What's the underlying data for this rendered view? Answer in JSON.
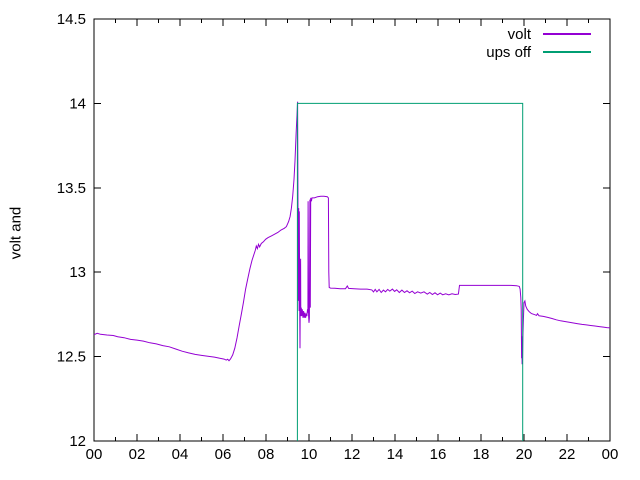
{
  "chart_data": {
    "type": "line",
    "title": "",
    "xlabel": "",
    "ylabel": "volt and",
    "grid": false,
    "x_axis": {
      "range": [
        0,
        24
      ],
      "major_tick_step": 2,
      "minor_tick_step": 1,
      "tick_labels": [
        "00",
        "02",
        "04",
        "06",
        "08",
        "10",
        "12",
        "14",
        "16",
        "18",
        "20",
        "22",
        "00"
      ]
    },
    "y_axis": {
      "range": [
        12,
        14.5
      ],
      "ticks": [
        12,
        12.5,
        13,
        13.5,
        14,
        14.5
      ],
      "tick_labels": [
        "12",
        "12.5",
        "13",
        "13.5",
        "14",
        "14.5"
      ]
    },
    "legend": {
      "position": "top-right-inside",
      "entries": [
        {
          "label": "volt",
          "color": "#9400d3"
        },
        {
          "label": "ups off",
          "color": "#009e73"
        }
      ]
    },
    "series": [
      {
        "name": "volt",
        "color": "#9400d3",
        "points": [
          [
            0,
            12.63
          ],
          [
            0.15,
            12.638
          ],
          [
            0.3,
            12.632
          ],
          [
            0.6,
            12.628
          ],
          [
            0.9,
            12.625
          ],
          [
            1.1,
            12.618
          ],
          [
            1.4,
            12.612
          ],
          [
            1.7,
            12.602
          ],
          [
            2,
            12.598
          ],
          [
            2.3,
            12.592
          ],
          [
            2.6,
            12.582
          ],
          [
            2.9,
            12.575
          ],
          [
            3.2,
            12.565
          ],
          [
            3.5,
            12.558
          ],
          [
            3.8,
            12.545
          ],
          [
            4.1,
            12.532
          ],
          [
            4.4,
            12.522
          ],
          [
            4.7,
            12.513
          ],
          [
            5,
            12.507
          ],
          [
            5.3,
            12.502
          ],
          [
            5.6,
            12.497
          ],
          [
            5.85,
            12.49
          ],
          [
            6.05,
            12.485
          ],
          [
            6.15,
            12.479
          ],
          [
            6.22,
            12.484
          ],
          [
            6.28,
            12.476
          ],
          [
            6.35,
            12.486
          ],
          [
            6.45,
            12.51
          ],
          [
            6.55,
            12.55
          ],
          [
            6.65,
            12.61
          ],
          [
            6.75,
            12.68
          ],
          [
            6.85,
            12.75
          ],
          [
            6.95,
            12.82
          ],
          [
            7.05,
            12.9
          ],
          [
            7.15,
            12.96
          ],
          [
            7.25,
            13.02
          ],
          [
            7.35,
            13.07
          ],
          [
            7.45,
            13.11
          ],
          [
            7.5,
            13.13
          ],
          [
            7.55,
            13.155
          ],
          [
            7.6,
            13.14
          ],
          [
            7.65,
            13.165
          ],
          [
            7.7,
            13.15
          ],
          [
            7.78,
            13.17
          ],
          [
            7.88,
            13.18
          ],
          [
            7.98,
            13.195
          ],
          [
            8.1,
            13.205
          ],
          [
            8.25,
            13.215
          ],
          [
            8.4,
            13.225
          ],
          [
            8.55,
            13.235
          ],
          [
            8.7,
            13.25
          ],
          [
            8.85,
            13.26
          ],
          [
            8.95,
            13.27
          ],
          [
            9.05,
            13.3
          ],
          [
            9.12,
            13.33
          ],
          [
            9.18,
            13.38
          ],
          [
            9.24,
            13.45
          ],
          [
            9.3,
            13.55
          ],
          [
            9.35,
            13.66
          ],
          [
            9.4,
            13.82
          ],
          [
            9.44,
            13.93
          ],
          [
            9.47,
            14.01
          ],
          [
            9.49,
            13.37
          ],
          [
            9.5,
            12.83
          ],
          [
            9.52,
            13.38
          ],
          [
            9.54,
            12.77
          ],
          [
            9.55,
            13.36
          ],
          [
            9.57,
            12.72
          ],
          [
            9.58,
            12.55
          ],
          [
            9.59,
            12.78
          ],
          [
            9.61,
            13.08
          ],
          [
            9.62,
            12.74
          ],
          [
            9.64,
            12.79
          ],
          [
            9.66,
            12.74
          ],
          [
            9.69,
            12.78
          ],
          [
            9.72,
            12.73
          ],
          [
            9.75,
            12.77
          ],
          [
            9.78,
            12.73
          ],
          [
            9.81,
            12.76
          ],
          [
            9.84,
            12.73
          ],
          [
            9.87,
            12.75
          ],
          [
            9.9,
            12.74
          ],
          [
            9.93,
            12.78
          ],
          [
            9.95,
            12.76
          ],
          [
            9.96,
            13.42
          ],
          [
            9.98,
            12.74
          ],
          [
            10,
            12.7
          ],
          [
            10.02,
            12.73
          ],
          [
            10.04,
            13.43
          ],
          [
            10.06,
            12.79
          ],
          [
            10.08,
            13.44
          ],
          [
            10.11,
            13.42
          ],
          [
            10.14,
            13.44
          ],
          [
            10.25,
            13.44
          ],
          [
            10.4,
            13.447
          ],
          [
            10.55,
            13.45
          ],
          [
            10.7,
            13.45
          ],
          [
            10.85,
            13.447
          ],
          [
            10.9,
            13.44
          ],
          [
            10.92,
            13.0
          ],
          [
            10.94,
            12.91
          ],
          [
            11,
            12.906
          ],
          [
            11.2,
            12.905
          ],
          [
            11.45,
            12.902
          ],
          [
            11.7,
            12.902
          ],
          [
            11.78,
            12.918
          ],
          [
            11.84,
            12.904
          ],
          [
            12.1,
            12.902
          ],
          [
            12.4,
            12.9
          ],
          [
            12.7,
            12.9
          ],
          [
            12.92,
            12.895
          ],
          [
            13,
            12.883
          ],
          [
            13.08,
            12.898
          ],
          [
            13.16,
            12.884
          ],
          [
            13.26,
            12.898
          ],
          [
            13.36,
            12.88
          ],
          [
            13.46,
            12.894
          ],
          [
            13.56,
            12.884
          ],
          [
            13.66,
            12.898
          ],
          [
            13.76,
            12.888
          ],
          [
            13.88,
            12.9
          ],
          [
            13.98,
            12.886
          ],
          [
            14.08,
            12.896
          ],
          [
            14.2,
            12.88
          ],
          [
            14.32,
            12.894
          ],
          [
            14.44,
            12.88
          ],
          [
            14.56,
            12.89
          ],
          [
            14.68,
            12.878
          ],
          [
            14.8,
            12.888
          ],
          [
            14.92,
            12.874
          ],
          [
            15.05,
            12.884
          ],
          [
            15.2,
            12.876
          ],
          [
            15.35,
            12.884
          ],
          [
            15.5,
            12.87
          ],
          [
            15.62,
            12.88
          ],
          [
            15.74,
            12.868
          ],
          [
            15.86,
            12.878
          ],
          [
            15.98,
            12.866
          ],
          [
            16.1,
            12.876
          ],
          [
            16.22,
            12.866
          ],
          [
            16.36,
            12.872
          ],
          [
            16.5,
            12.866
          ],
          [
            16.65,
            12.872
          ],
          [
            16.8,
            12.868
          ],
          [
            16.95,
            12.87
          ],
          [
            17,
            12.922
          ],
          [
            17.3,
            12.922
          ],
          [
            17.6,
            12.922
          ],
          [
            17.9,
            12.922
          ],
          [
            18.2,
            12.922
          ],
          [
            18.5,
            12.922
          ],
          [
            18.8,
            12.922
          ],
          [
            19.1,
            12.922
          ],
          [
            19.4,
            12.922
          ],
          [
            19.65,
            12.92
          ],
          [
            19.78,
            12.916
          ],
          [
            19.82,
            12.9
          ],
          [
            19.85,
            12.85
          ],
          [
            19.87,
            12.78
          ],
          [
            19.88,
            12.64
          ],
          [
            19.89,
            12.49
          ],
          [
            19.9,
            12.62
          ],
          [
            19.91,
            12.455
          ],
          [
            19.92,
            12.55
          ],
          [
            19.93,
            12.47
          ],
          [
            19.95,
            12.62
          ],
          [
            19.97,
            12.72
          ],
          [
            20,
            12.82
          ],
          [
            20.04,
            12.83
          ],
          [
            20.08,
            12.8
          ],
          [
            20.15,
            12.78
          ],
          [
            20.25,
            12.765
          ],
          [
            20.35,
            12.755
          ],
          [
            20.5,
            12.748
          ],
          [
            20.58,
            12.744
          ],
          [
            20.63,
            12.754
          ],
          [
            20.7,
            12.742
          ],
          [
            20.9,
            12.738
          ],
          [
            21.1,
            12.732
          ],
          [
            21.3,
            12.726
          ],
          [
            21.5,
            12.718
          ],
          [
            21.7,
            12.712
          ],
          [
            21.9,
            12.708
          ],
          [
            22.1,
            12.703
          ],
          [
            22.3,
            12.699
          ],
          [
            22.5,
            12.695
          ],
          [
            22.7,
            12.691
          ],
          [
            22.9,
            12.688
          ],
          [
            23.1,
            12.684
          ],
          [
            23.3,
            12.681
          ],
          [
            23.5,
            12.678
          ],
          [
            23.7,
            12.675
          ],
          [
            23.85,
            12.672
          ],
          [
            24,
            12.67
          ]
        ]
      },
      {
        "name": "ups off",
        "color": "#009e73",
        "points": [
          [
            9.46,
            12
          ],
          [
            9.46,
            14
          ],
          [
            19.94,
            14
          ],
          [
            19.94,
            12
          ]
        ]
      }
    ]
  }
}
